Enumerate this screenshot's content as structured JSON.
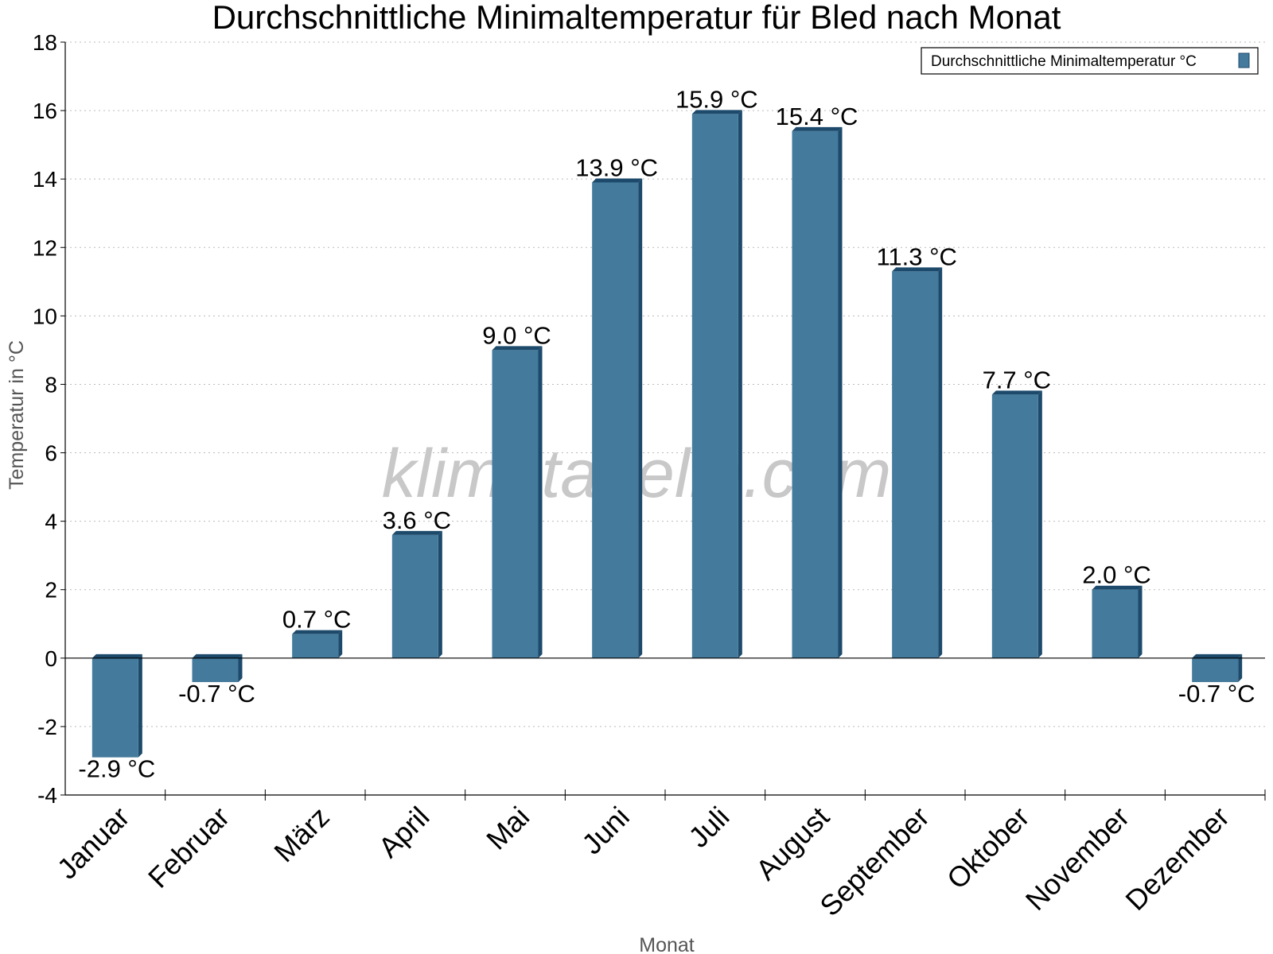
{
  "chart_data": {
    "type": "bar",
    "title": "Durchschnittliche Minimaltemperatur für Bled nach Monat",
    "xlabel": "Monat",
    "ylabel": "Temperatur in °C",
    "ylim": [
      -4,
      18
    ],
    "y_ticks": [
      -4,
      -2,
      0,
      2,
      4,
      6,
      8,
      10,
      12,
      14,
      16,
      18
    ],
    "grid": true,
    "legend_position": "top-right",
    "categories": [
      "Januar",
      "Februar",
      "März",
      "April",
      "Mai",
      "Juni",
      "Juli",
      "August",
      "September",
      "Oktober",
      "November",
      "Dezember"
    ],
    "series": [
      {
        "name": "Durchschnittliche Minimaltemperatur °C",
        "values": [
          -2.9,
          -0.7,
          0.7,
          3.6,
          9.0,
          13.9,
          15.9,
          15.4,
          11.3,
          7.7,
          2.0,
          -0.7
        ],
        "labels": [
          "-2.9 °C",
          "-0.7 °C",
          "0.7 °C",
          "3.6 °C",
          "9.0 °C",
          "13.9 °C",
          "15.9 °C",
          "15.4 °C",
          "11.3 °C",
          "7.7 °C",
          "2.0 °C",
          "-0.7 °C"
        ],
        "color": "#447a9c",
        "side_color": "#1d4a6b"
      }
    ]
  },
  "watermark": "klimatabelle.com"
}
